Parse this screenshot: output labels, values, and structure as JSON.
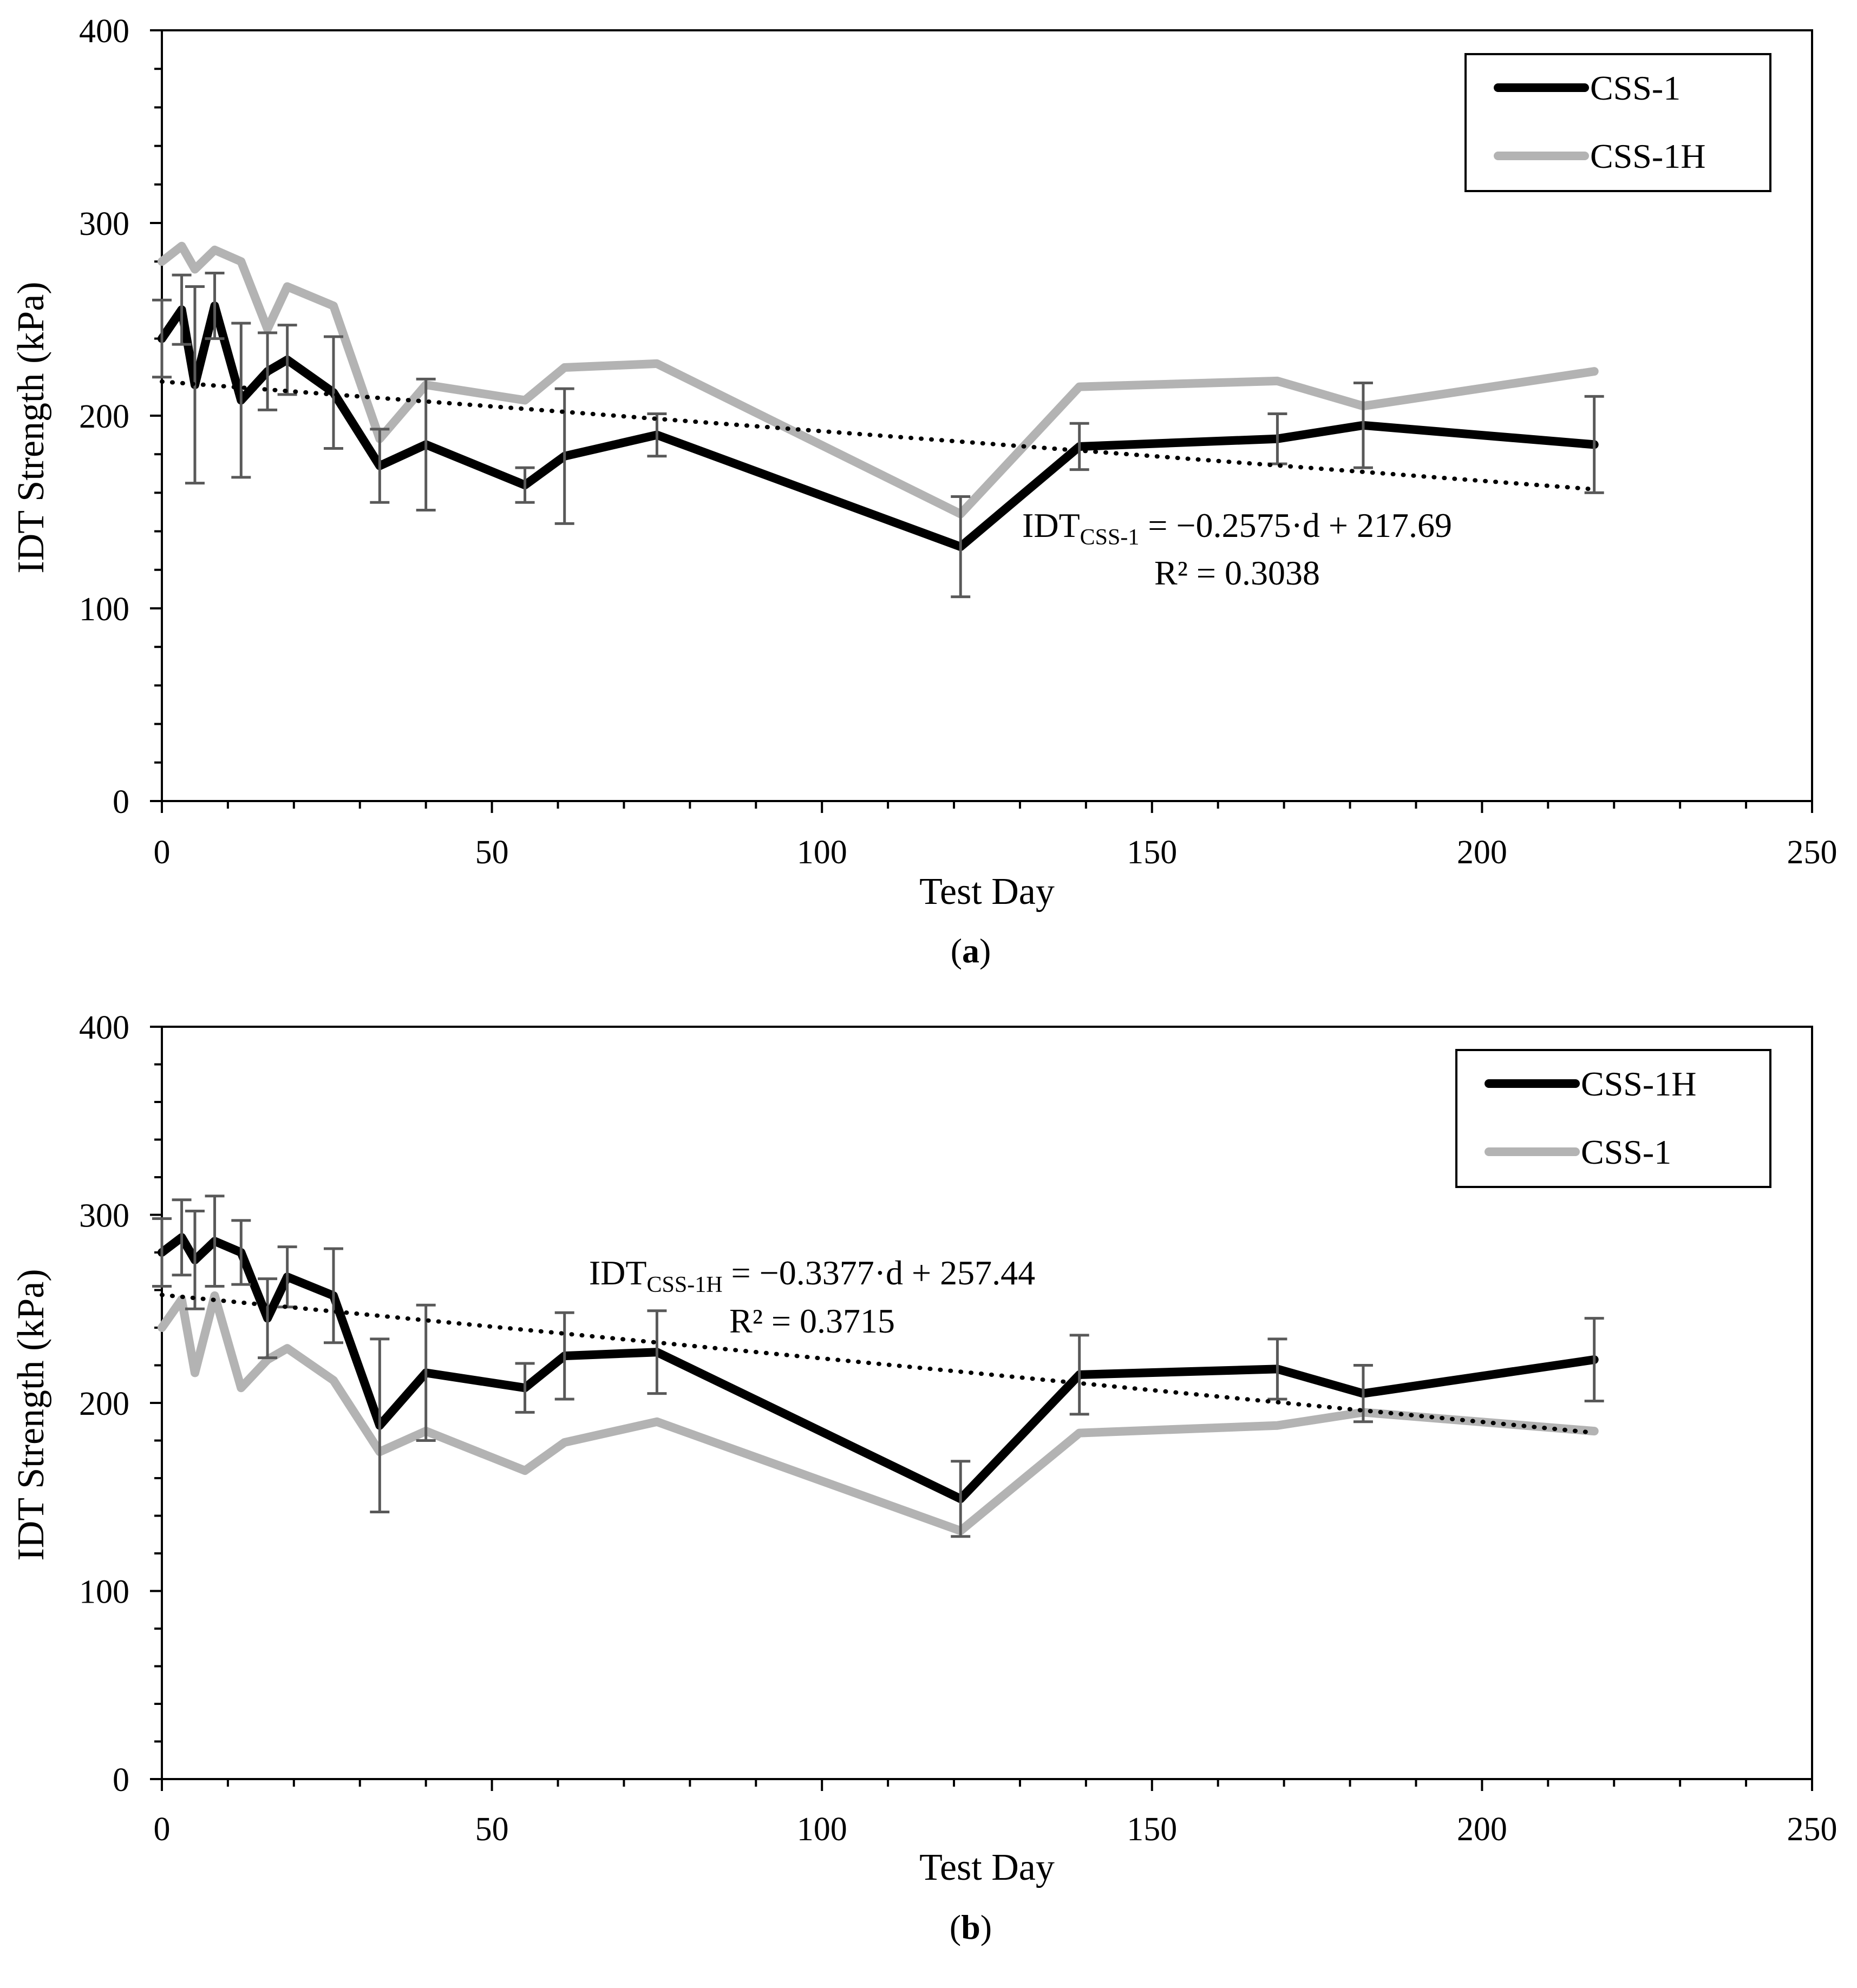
{
  "chart_data": [
    {
      "panel_label": "a",
      "type": "line",
      "xlabel": "Test Day",
      "ylabel": "IDT Strength (kPa)",
      "xlim": [
        0,
        250
      ],
      "ylim": [
        0,
        400
      ],
      "x_ticks": [
        0,
        50,
        100,
        150,
        200,
        250
      ],
      "y_ticks": [
        0,
        100,
        200,
        300,
        400
      ],
      "x_tick_labels": [
        "0",
        "50",
        "100",
        "150",
        "200",
        "250"
      ],
      "y_tick_labels": [
        "0",
        "100",
        "200",
        "300",
        "400"
      ],
      "legend_position": "top-right",
      "series": [
        {
          "name": "CSS-1",
          "color": "#000000",
          "x": [
            0,
            3,
            5,
            8,
            12,
            16,
            19,
            26,
            33,
            40,
            55,
            61,
            75,
            121,
            139,
            169,
            182,
            217
          ],
          "values": [
            240,
            255,
            216,
            257,
            208,
            223,
            229,
            212,
            174,
            185,
            164,
            179,
            190,
            132,
            184,
            188,
            195,
            185
          ],
          "error": [
            20,
            18,
            51,
            17,
            40,
            20,
            18,
            29,
            19,
            34,
            9,
            35,
            11,
            26,
            12,
            13,
            22,
            25
          ]
        },
        {
          "name": "CSS-1H",
          "color": "#b3b3b3",
          "x": [
            0,
            3,
            5,
            8,
            12,
            16,
            19,
            26,
            33,
            40,
            55,
            61,
            75,
            121,
            139,
            169,
            182,
            217
          ],
          "values": [
            280,
            288,
            276,
            286,
            280,
            245,
            267,
            257,
            188,
            216,
            208,
            225,
            227,
            149,
            215,
            218,
            205,
            223
          ]
        }
      ],
      "trendline": {
        "series": "CSS-1",
        "slope": -0.2575,
        "intercept": 217.69,
        "x_range": [
          0,
          217
        ]
      },
      "equation": {
        "lhs": "IDT",
        "subscript": "CSS-1",
        "rhs": " = −0.2575·d + 217.69",
        "r2": "R² = 0.3038"
      }
    },
    {
      "panel_label": "b",
      "type": "line",
      "xlabel": "Test Day",
      "ylabel": "IDT Strength (kPa)",
      "xlim": [
        0,
        250
      ],
      "ylim": [
        0,
        400
      ],
      "x_ticks": [
        0,
        50,
        100,
        150,
        200,
        250
      ],
      "y_ticks": [
        0,
        100,
        200,
        300,
        400
      ],
      "x_tick_labels": [
        "0",
        "50",
        "100",
        "150",
        "200",
        "250"
      ],
      "y_tick_labels": [
        "0",
        "100",
        "200",
        "300",
        "400"
      ],
      "legend_position": "top-right",
      "series": [
        {
          "name": "CSS-1H",
          "color": "#000000",
          "x": [
            0,
            3,
            5,
            8,
            12,
            16,
            19,
            26,
            33,
            40,
            55,
            61,
            75,
            121,
            139,
            169,
            182,
            217
          ],
          "values": [
            280,
            288,
            276,
            286,
            280,
            245,
            267,
            257,
            188,
            216,
            208,
            225,
            227,
            149,
            215,
            218,
            205,
            223
          ],
          "error": [
            18,
            20,
            26,
            24,
            17,
            21,
            16,
            25,
            46,
            36,
            13,
            23,
            22,
            20,
            21,
            16,
            15,
            22
          ]
        },
        {
          "name": "CSS-1",
          "color": "#b3b3b3",
          "x": [
            0,
            3,
            5,
            8,
            12,
            16,
            19,
            26,
            33,
            40,
            55,
            61,
            75,
            121,
            139,
            169,
            182,
            217
          ],
          "values": [
            240,
            255,
            216,
            257,
            208,
            223,
            229,
            212,
            174,
            185,
            164,
            179,
            190,
            132,
            184,
            188,
            195,
            185
          ]
        }
      ],
      "trendline": {
        "series": "CSS-1H",
        "slope": -0.3377,
        "intercept": 257.44,
        "x_range": [
          0,
          217
        ]
      },
      "equation": {
        "lhs": "IDT",
        "subscript": "CSS-1H",
        "rhs": " = −0.3377·d + 257.44",
        "r2": "R² = 0.3715"
      }
    }
  ]
}
